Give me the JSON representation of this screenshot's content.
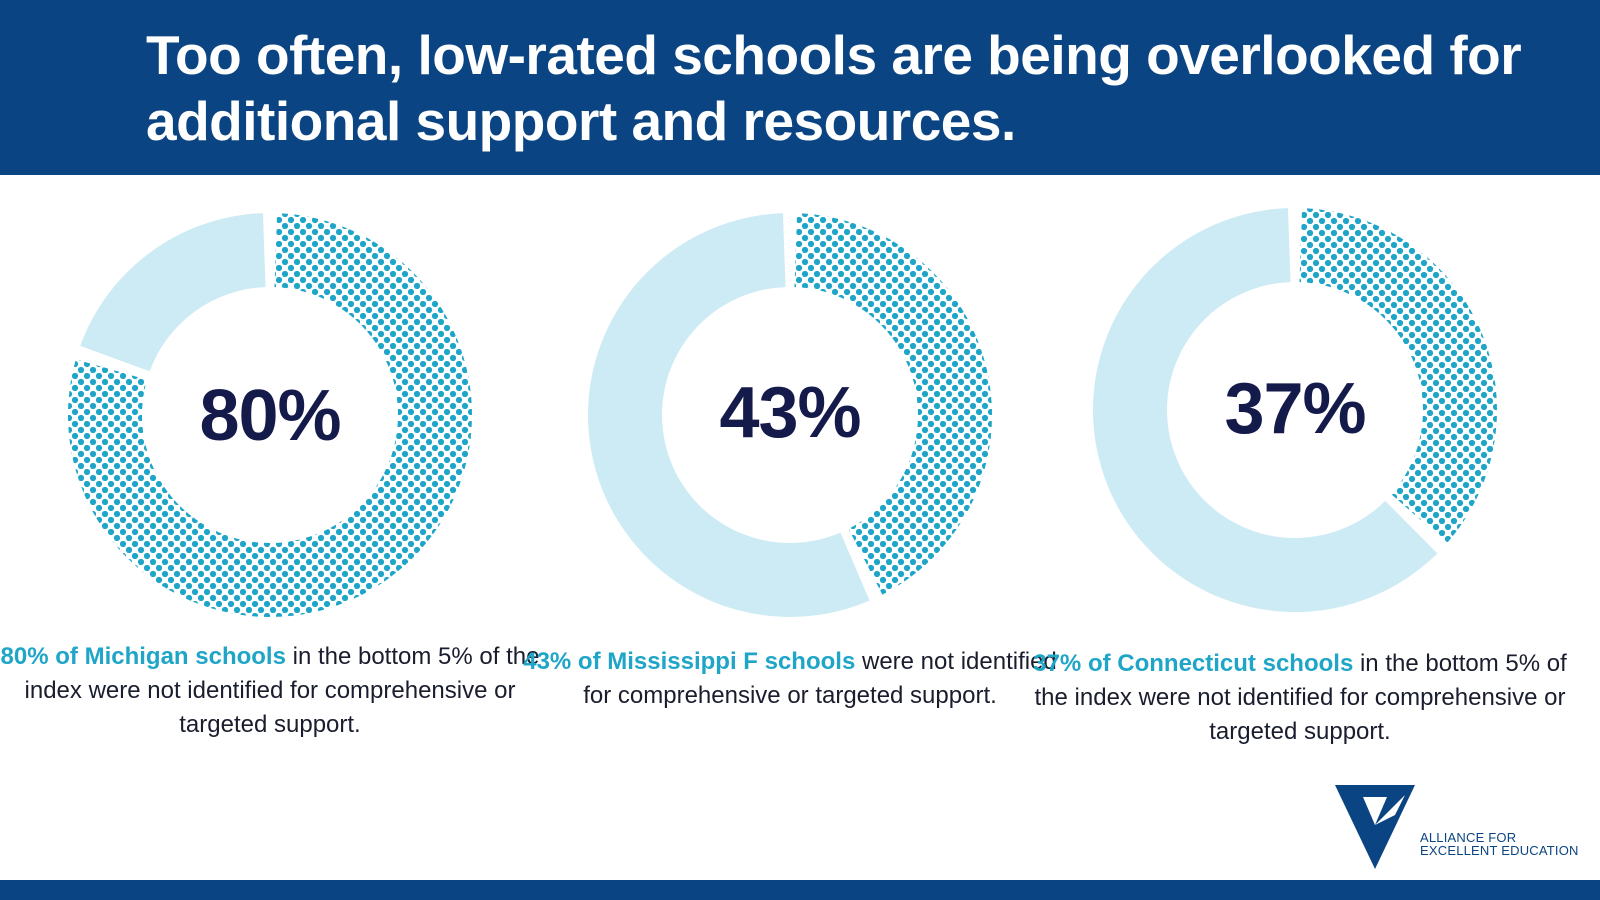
{
  "header": {
    "title": "Too often, low-rated schools are being overlooked for additional support and resources."
  },
  "chart_data": [
    {
      "type": "pie",
      "center_label": "80%",
      "values": [
        80,
        20
      ],
      "caption_highlight": "80% of Michigan schools",
      "caption_rest": "in the bottom 5% of the index were not identified for comprehensive or targeted support."
    },
    {
      "type": "pie",
      "center_label": "43%",
      "values": [
        43,
        57
      ],
      "caption_highlight": "43% of Mississippi F schools",
      "caption_rest": "were not identified for comprehensive or targeted support."
    },
    {
      "type": "pie",
      "center_label": "37%",
      "values": [
        37,
        63
      ],
      "caption_highlight": "37% of Connecticut schools",
      "caption_rest": "in the bottom 5% of the index were not identified for comprehensive or targeted support."
    }
  ],
  "colors": {
    "brand_blue": "#0b4482",
    "highlight": "#1fa5c7",
    "dot_fill": "#1fa5c7",
    "remainder": "#cdebf4",
    "percent_text": "#141a4a"
  },
  "logo": {
    "line1": "ALLIANCE FOR",
    "line2": "EXCELLENT EDUCATION",
    "icon": "alliance-triangle-logo"
  }
}
